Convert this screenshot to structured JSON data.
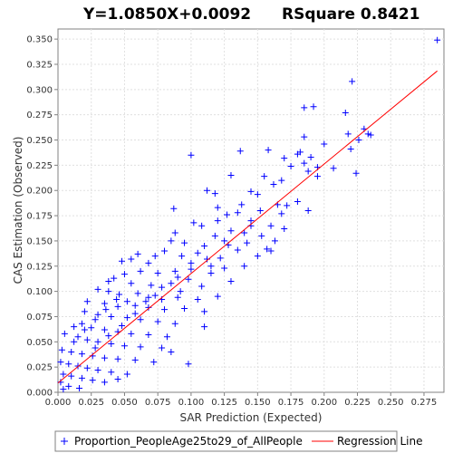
{
  "chart_data": {
    "type": "scatter",
    "title_left": "Y=1.0850X+0.0092",
    "title_right": "RSquare 0.8421",
    "xlabel": "SAR Prediction (Expected)",
    "ylabel": "CAS Estimation (Observed)",
    "xlim": [
      0.0,
      0.29
    ],
    "ylim": [
      0.0,
      0.36
    ],
    "x_ticks": [
      "0.000",
      "0.025",
      "0.050",
      "0.075",
      "0.100",
      "0.125",
      "0.150",
      "0.175",
      "0.200",
      "0.225",
      "0.250",
      "0.275"
    ],
    "y_ticks": [
      "0.000",
      "0.025",
      "0.050",
      "0.075",
      "0.100",
      "0.125",
      "0.150",
      "0.175",
      "0.200",
      "0.225",
      "0.250",
      "0.275",
      "0.300",
      "0.325",
      "0.350"
    ],
    "grid": true,
    "legend_position": "bottom",
    "regression": {
      "name": "Regression Line",
      "slope": 1.085,
      "intercept": 0.0092,
      "x_range": [
        0.0,
        0.285
      ],
      "color": "#ff0000"
    },
    "series": [
      {
        "name": "Proportion_PeopleAge25to29_of_AllPeople",
        "color": "#0000ff",
        "marker": "plus",
        "points": [
          [
            0.285,
            0.349
          ],
          [
            0.221,
            0.308
          ],
          [
            0.192,
            0.283
          ],
          [
            0.185,
            0.282
          ],
          [
            0.216,
            0.277
          ],
          [
            0.23,
            0.261
          ],
          [
            0.233,
            0.256
          ],
          [
            0.218,
            0.256
          ],
          [
            0.185,
            0.253
          ],
          [
            0.235,
            0.255
          ],
          [
            0.226,
            0.25
          ],
          [
            0.2,
            0.246
          ],
          [
            0.158,
            0.24
          ],
          [
            0.137,
            0.239
          ],
          [
            0.22,
            0.241
          ],
          [
            0.182,
            0.238
          ],
          [
            0.18,
            0.236
          ],
          [
            0.1,
            0.235
          ],
          [
            0.19,
            0.233
          ],
          [
            0.17,
            0.232
          ],
          [
            0.185,
            0.227
          ],
          [
            0.175,
            0.224
          ],
          [
            0.195,
            0.223
          ],
          [
            0.207,
            0.222
          ],
          [
            0.188,
            0.219
          ],
          [
            0.224,
            0.217
          ],
          [
            0.195,
            0.214
          ],
          [
            0.155,
            0.214
          ],
          [
            0.13,
            0.215
          ],
          [
            0.168,
            0.21
          ],
          [
            0.162,
            0.206
          ],
          [
            0.112,
            0.2
          ],
          [
            0.118,
            0.197
          ],
          [
            0.145,
            0.199
          ],
          [
            0.15,
            0.196
          ],
          [
            0.18,
            0.189
          ],
          [
            0.165,
            0.186
          ],
          [
            0.138,
            0.186
          ],
          [
            0.172,
            0.185
          ],
          [
            0.12,
            0.183
          ],
          [
            0.087,
            0.182
          ],
          [
            0.188,
            0.18
          ],
          [
            0.152,
            0.18
          ],
          [
            0.168,
            0.177
          ],
          [
            0.135,
            0.178
          ],
          [
            0.127,
            0.176
          ],
          [
            0.145,
            0.17
          ],
          [
            0.12,
            0.17
          ],
          [
            0.102,
            0.168
          ],
          [
            0.108,
            0.165
          ],
          [
            0.16,
            0.165
          ],
          [
            0.17,
            0.162
          ],
          [
            0.153,
            0.155
          ],
          [
            0.14,
            0.158
          ],
          [
            0.13,
            0.16
          ],
          [
            0.088,
            0.158
          ],
          [
            0.118,
            0.155
          ],
          [
            0.163,
            0.15
          ],
          [
            0.142,
            0.148
          ],
          [
            0.128,
            0.146
          ],
          [
            0.085,
            0.15
          ],
          [
            0.095,
            0.148
          ],
          [
            0.157,
            0.142
          ],
          [
            0.135,
            0.141
          ],
          [
            0.11,
            0.145
          ],
          [
            0.093,
            0.135
          ],
          [
            0.105,
            0.138
          ],
          [
            0.122,
            0.133
          ],
          [
            0.08,
            0.14
          ],
          [
            0.073,
            0.135
          ],
          [
            0.06,
            0.137
          ],
          [
            0.055,
            0.132
          ],
          [
            0.048,
            0.13
          ],
          [
            0.068,
            0.128
          ],
          [
            0.1,
            0.128
          ],
          [
            0.115,
            0.125
          ],
          [
            0.125,
            0.123
          ],
          [
            0.088,
            0.12
          ],
          [
            0.075,
            0.118
          ],
          [
            0.062,
            0.12
          ],
          [
            0.05,
            0.117
          ],
          [
            0.042,
            0.113
          ],
          [
            0.038,
            0.11
          ],
          [
            0.055,
            0.108
          ],
          [
            0.07,
            0.106
          ],
          [
            0.085,
            0.108
          ],
          [
            0.098,
            0.112
          ],
          [
            0.03,
            0.102
          ],
          [
            0.038,
            0.1
          ],
          [
            0.046,
            0.097
          ],
          [
            0.06,
            0.098
          ],
          [
            0.073,
            0.096
          ],
          [
            0.09,
            0.094
          ],
          [
            0.105,
            0.092
          ],
          [
            0.022,
            0.09
          ],
          [
            0.035,
            0.088
          ],
          [
            0.045,
            0.085
          ],
          [
            0.058,
            0.086
          ],
          [
            0.068,
            0.084
          ],
          [
            0.08,
            0.082
          ],
          [
            0.095,
            0.083
          ],
          [
            0.11,
            0.08
          ],
          [
            0.02,
            0.08
          ],
          [
            0.03,
            0.077
          ],
          [
            0.04,
            0.075
          ],
          [
            0.052,
            0.074
          ],
          [
            0.062,
            0.072
          ],
          [
            0.075,
            0.07
          ],
          [
            0.088,
            0.068
          ],
          [
            0.012,
            0.065
          ],
          [
            0.018,
            0.068
          ],
          [
            0.025,
            0.064
          ],
          [
            0.035,
            0.062
          ],
          [
            0.045,
            0.06
          ],
          [
            0.055,
            0.058
          ],
          [
            0.068,
            0.057
          ],
          [
            0.082,
            0.055
          ],
          [
            0.005,
            0.058
          ],
          [
            0.015,
            0.055
          ],
          [
            0.022,
            0.052
          ],
          [
            0.03,
            0.05
          ],
          [
            0.04,
            0.048
          ],
          [
            0.05,
            0.046
          ],
          [
            0.062,
            0.045
          ],
          [
            0.078,
            0.044
          ],
          [
            0.003,
            0.042
          ],
          [
            0.01,
            0.04
          ],
          [
            0.018,
            0.038
          ],
          [
            0.026,
            0.036
          ],
          [
            0.035,
            0.034
          ],
          [
            0.045,
            0.033
          ],
          [
            0.058,
            0.032
          ],
          [
            0.072,
            0.03
          ],
          [
            0.002,
            0.03
          ],
          [
            0.008,
            0.028
          ],
          [
            0.015,
            0.026
          ],
          [
            0.022,
            0.024
          ],
          [
            0.03,
            0.022
          ],
          [
            0.04,
            0.02
          ],
          [
            0.052,
            0.018
          ],
          [
            0.004,
            0.018
          ],
          [
            0.01,
            0.016
          ],
          [
            0.018,
            0.014
          ],
          [
            0.026,
            0.012
          ],
          [
            0.035,
            0.01
          ],
          [
            0.002,
            0.01
          ],
          [
            0.008,
            0.006
          ],
          [
            0.016,
            0.004
          ],
          [
            0.004,
            0.003
          ],
          [
            0.045,
            0.013
          ],
          [
            0.098,
            0.028
          ],
          [
            0.085,
            0.04
          ],
          [
            0.11,
            0.065
          ],
          [
            0.12,
            0.095
          ],
          [
            0.13,
            0.11
          ],
          [
            0.14,
            0.125
          ],
          [
            0.15,
            0.135
          ],
          [
            0.16,
            0.14
          ],
          [
            0.145,
            0.165
          ],
          [
            0.125,
            0.15
          ],
          [
            0.108,
            0.105
          ],
          [
            0.115,
            0.118
          ],
          [
            0.092,
            0.1
          ],
          [
            0.078,
            0.092
          ],
          [
            0.066,
            0.09
          ],
          [
            0.052,
            0.09
          ],
          [
            0.044,
            0.092
          ],
          [
            0.036,
            0.082
          ],
          [
            0.028,
            0.072
          ],
          [
            0.02,
            0.062
          ],
          [
            0.012,
            0.05
          ],
          [
            0.028,
            0.044
          ],
          [
            0.038,
            0.056
          ],
          [
            0.048,
            0.066
          ],
          [
            0.058,
            0.078
          ],
          [
            0.068,
            0.094
          ],
          [
            0.078,
            0.104
          ],
          [
            0.09,
            0.114
          ],
          [
            0.1,
            0.122
          ],
          [
            0.112,
            0.132
          ]
        ]
      }
    ]
  }
}
